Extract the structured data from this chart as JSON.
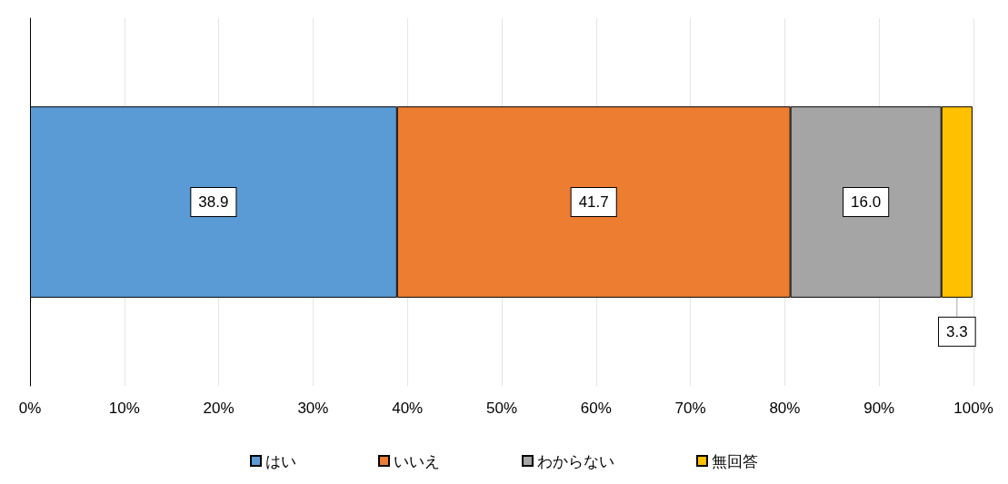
{
  "chart_data": {
    "type": "bar",
    "orientation": "horizontal",
    "stacked": true,
    "categories": [
      null
    ],
    "series": [
      {
        "name": "はい",
        "color": "#5b9bd5",
        "values": [
          38.9
        ],
        "value_labels": [
          "38.9"
        ]
      },
      {
        "name": "いいえ",
        "color": "#ed7d31",
        "values": [
          41.7
        ],
        "value_labels": [
          "41.7"
        ]
      },
      {
        "name": "わからない",
        "color": "#a5a5a5",
        "values": [
          16.0
        ],
        "value_labels": [
          "16.0"
        ]
      },
      {
        "name": "無回答",
        "color": "#ffc000",
        "values": [
          3.3
        ],
        "value_labels": [
          "3.3"
        ]
      }
    ],
    "xlim": [
      0,
      100
    ],
    "xticks": [
      {
        "value": 0,
        "label": "0%"
      },
      {
        "value": 10,
        "label": "10%"
      },
      {
        "value": 20,
        "label": "20%"
      },
      {
        "value": 30,
        "label": "30%"
      },
      {
        "value": 40,
        "label": "40%"
      },
      {
        "value": 50,
        "label": "50%"
      },
      {
        "value": 60,
        "label": "60%"
      },
      {
        "value": 70,
        "label": "70%"
      },
      {
        "value": 80,
        "label": "80%"
      },
      {
        "value": 90,
        "label": "90%"
      },
      {
        "value": 100,
        "label": "100%"
      }
    ],
    "grid": "x",
    "legend": "bottom"
  }
}
